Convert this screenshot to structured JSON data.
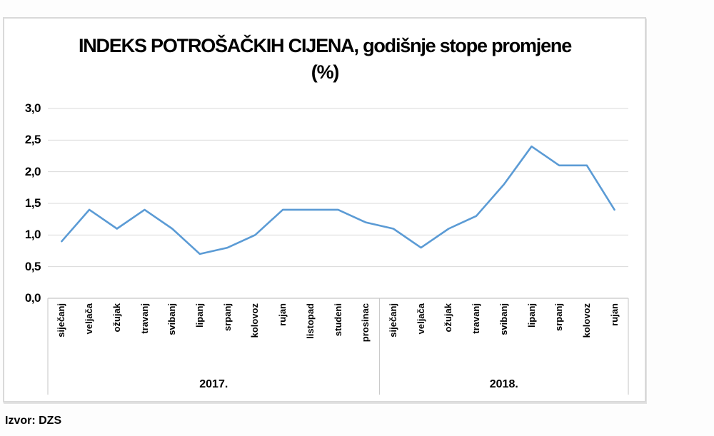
{
  "source": {
    "label": "Izvor: DZS"
  },
  "chart_data": {
    "type": "line",
    "title": "INDEKS POTROŠAČKIH CIJENA, godišnje stope promjene",
    "subtitle": "(%)",
    "ylim": [
      0,
      3
    ],
    "ytick_interval": 0.5,
    "ytick_labels": [
      "0,0",
      "0,5",
      "1,0",
      "1,5",
      "2,0",
      "2,5",
      "3,0"
    ],
    "grid": true,
    "legend": "none",
    "decimal_separator": ",",
    "line_color": "#5B9BD5",
    "grid_color": "#d9d9d9",
    "axis_color": "#c6c6c6",
    "categories": [
      "siječanj",
      "veljača",
      "ožujak",
      "travanj",
      "svibanj",
      "lipanj",
      "srpanj",
      "kolovoz",
      "rujan",
      "listopad",
      "studeni",
      "prosinac",
      "siječanj",
      "veljača",
      "ožujak",
      "travanj",
      "svibanj",
      "lipanj",
      "srpanj",
      "kolovoz",
      "rujan"
    ],
    "year_groups": [
      {
        "label": "2017.",
        "months": 12
      },
      {
        "label": "2018.",
        "months": 9
      }
    ],
    "values": [
      0.9,
      1.4,
      1.1,
      1.4,
      1.1,
      0.7,
      0.8,
      1.0,
      1.4,
      1.4,
      1.4,
      1.2,
      1.1,
      0.8,
      1.1,
      1.3,
      1.8,
      2.4,
      2.1,
      2.1,
      1.4
    ]
  }
}
